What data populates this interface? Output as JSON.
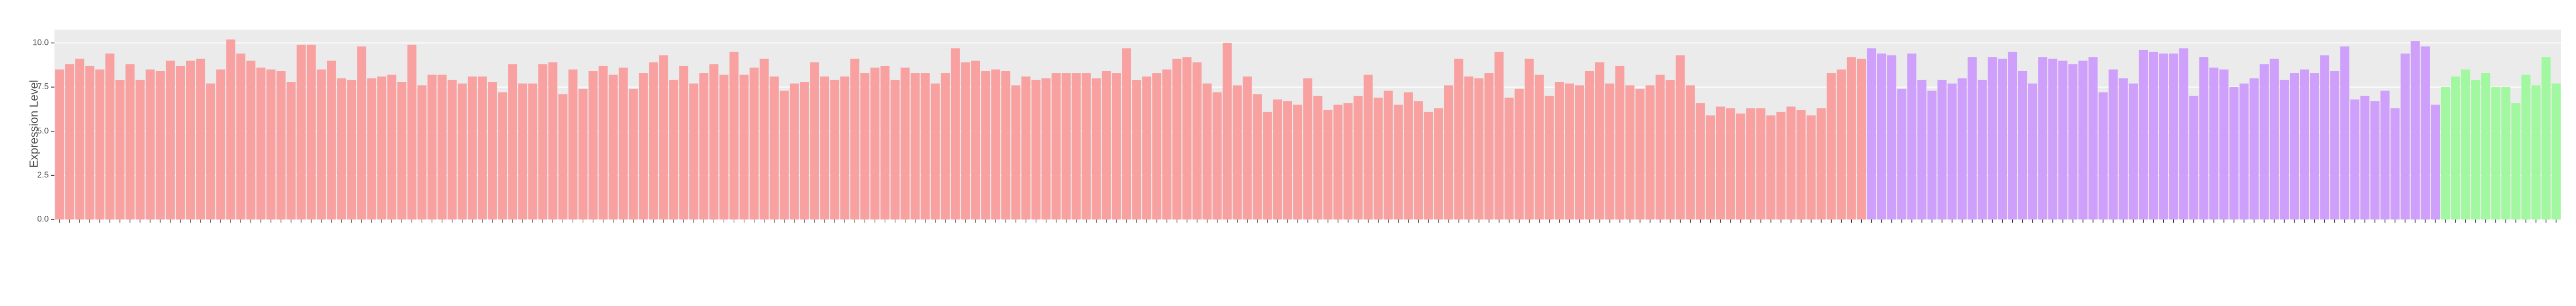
{
  "chart_data": {
    "type": "bar",
    "y_label": "Expression Level",
    "categories": [
      null,
      null,
      null,
      null,
      null,
      null,
      null,
      null,
      null,
      null,
      null,
      null,
      null,
      null,
      null,
      null,
      null,
      null,
      null,
      null,
      null,
      null,
      null,
      null,
      null,
      null,
      null,
      null,
      null,
      null,
      null,
      null,
      null,
      null,
      null,
      null,
      null,
      null,
      null,
      null,
      null,
      null,
      null,
      null,
      null,
      null,
      null,
      null,
      null,
      null,
      null,
      null,
      null,
      null,
      null,
      null,
      null,
      null,
      null,
      null,
      null,
      null,
      null,
      null,
      null,
      null,
      null,
      null,
      null,
      null,
      null,
      null,
      null,
      null,
      null,
      null,
      null,
      null,
      null,
      null,
      null,
      null,
      null,
      null,
      null,
      null,
      null,
      null,
      null,
      null,
      null,
      null,
      null,
      null,
      null,
      null,
      null,
      null,
      null,
      null,
      null,
      null,
      null,
      null,
      null,
      null,
      null,
      null,
      null,
      null,
      null,
      null,
      null,
      null,
      null,
      null,
      null,
      null,
      null,
      null,
      null,
      null,
      null,
      null,
      null,
      null,
      null,
      null,
      null,
      null,
      null,
      null,
      null,
      null,
      null,
      null,
      null,
      null,
      null,
      null,
      null,
      null,
      null,
      null,
      null,
      null,
      null,
      null,
      null,
      null,
      null,
      null,
      null,
      null,
      null,
      null,
      null,
      null,
      null,
      null,
      null,
      null,
      null,
      null,
      null,
      null,
      null,
      null,
      null,
      null,
      null,
      null,
      null,
      null,
      null,
      null,
      null,
      null,
      null,
      null,
      null,
      null,
      null,
      null,
      null,
      null,
      null,
      null,
      null,
      null,
      null,
      null,
      null,
      null,
      null,
      null,
      null,
      null,
      null,
      null,
      null,
      null,
      null,
      null,
      null,
      null,
      null,
      null,
      null,
      null,
      null,
      null,
      null,
      null,
      null,
      null,
      null,
      null,
      null,
      null,
      null,
      null,
      null,
      null,
      null,
      null,
      null,
      null,
      null,
      null,
      null,
      null,
      null,
      null,
      null,
      null,
      null,
      null,
      null,
      null,
      null,
      null,
      null,
      null,
      null,
      null,
      null,
      null,
      null
    ],
    "values": [
      8.5,
      8.8,
      9.1,
      8.7,
      8.5,
      9.4,
      7.9,
      8.8,
      7.9,
      8.5,
      8.4,
      9.0,
      8.7,
      9.0,
      9.1,
      7.7,
      8.5,
      10.2,
      9.4,
      9.0,
      8.6,
      8.5,
      8.4,
      7.8,
      9.9,
      9.9,
      8.5,
      9.0,
      8.0,
      7.9,
      9.8,
      8.0,
      8.1,
      8.2,
      7.8,
      9.9,
      7.6,
      8.2,
      8.2,
      7.9,
      7.7,
      8.1,
      8.1,
      7.8,
      7.2,
      8.8,
      7.7,
      7.7,
      8.8,
      8.9,
      7.1,
      8.5,
      7.4,
      8.4,
      8.7,
      8.2,
      8.6,
      7.4,
      8.3,
      8.9,
      9.3,
      7.9,
      8.7,
      7.7,
      8.3,
      8.8,
      8.2,
      9.5,
      8.2,
      8.6,
      9.1,
      8.1,
      7.3,
      7.7,
      7.8,
      8.9,
      8.1,
      7.9,
      8.1,
      9.1,
      8.3,
      8.6,
      8.7,
      7.9,
      8.6,
      8.3,
      8.3,
      7.7,
      8.3,
      9.7,
      8.9,
      9.0,
      8.4,
      8.5,
      8.4,
      7.6,
      8.1,
      7.9,
      8.0,
      8.3,
      8.3,
      8.3,
      8.3,
      8.0,
      8.4,
      8.3,
      9.7,
      7.9,
      8.1,
      8.3,
      8.5,
      9.1,
      9.2,
      8.9,
      7.7,
      7.2,
      10.0,
      7.6,
      8.1,
      7.1,
      6.1,
      6.8,
      6.7,
      6.5,
      8.0,
      7.0,
      6.2,
      6.5,
      6.6,
      7.0,
      8.2,
      6.9,
      7.3,
      6.5,
      7.2,
      6.7,
      6.1,
      6.3,
      7.6,
      9.1,
      8.1,
      8.0,
      8.3,
      9.5,
      6.9,
      7.4,
      9.1,
      8.2,
      7.0,
      7.8,
      7.7,
      7.6,
      8.4,
      8.9,
      7.7,
      8.7,
      7.6,
      7.4,
      7.6,
      8.2,
      7.9,
      9.3,
      7.6,
      6.6,
      5.9,
      6.4,
      6.3,
      6.0,
      6.3,
      6.3,
      5.9,
      6.1,
      6.4,
      6.2,
      5.9,
      6.3,
      8.3,
      8.5,
      9.2,
      9.1,
      9.7,
      9.4,
      9.3,
      7.4,
      9.4,
      7.9,
      7.3,
      7.9,
      7.7,
      8.0,
      9.2,
      7.9,
      9.2,
      9.1,
      9.5,
      8.4,
      7.7,
      9.2,
      9.1,
      9.0,
      8.8,
      9.0,
      9.2,
      7.2,
      8.5,
      8.0,
      7.7,
      9.6,
      9.5,
      9.4,
      9.4,
      9.7,
      7.0,
      9.2,
      8.6,
      8.5,
      7.5,
      7.7,
      8.0,
      8.8,
      9.1,
      7.9,
      8.3,
      8.5,
      8.3,
      9.3,
      8.4,
      9.8,
      6.8,
      7.0,
      6.7,
      7.3,
      6.3,
      9.4,
      10.1,
      9.8,
      6.5,
      7.5,
      8.1,
      8.5,
      7.9,
      8.3,
      7.5,
      7.5,
      6.6,
      8.2,
      7.6,
      9.2,
      7.7
    ],
    "colors": [
      "#f8a1a0",
      "#f8a1a0",
      "#f8a1a0",
      "#f8a1a0",
      "#f8a1a0",
      "#f8a1a0",
      "#f8a1a0",
      "#f8a1a0",
      "#f8a1a0",
      "#f8a1a0",
      "#f8a1a0",
      "#f8a1a0",
      "#f8a1a0",
      "#f8a1a0",
      "#f8a1a0",
      "#f8a1a0",
      "#f8a1a0",
      "#f8a1a0",
      "#f8a1a0",
      "#f8a1a0",
      "#f8a1a0",
      "#f8a1a0",
      "#f8a1a0",
      "#f8a1a0",
      "#f8a1a0",
      "#f8a1a0",
      "#f8a1a0",
      "#f8a1a0",
      "#f8a1a0",
      "#f8a1a0",
      "#f8a1a0",
      "#f8a1a0",
      "#f8a1a0",
      "#f8a1a0",
      "#f8a1a0",
      "#f8a1a0",
      "#f8a1a0",
      "#f8a1a0",
      "#f8a1a0",
      "#f8a1a0",
      "#f8a1a0",
      "#f8a1a0",
      "#f8a1a0",
      "#f8a1a0",
      "#f8a1a0",
      "#f8a1a0",
      "#f8a1a0",
      "#f8a1a0",
      "#f8a1a0",
      "#f8a1a0",
      "#f8a1a0",
      "#f8a1a0",
      "#f8a1a0",
      "#f8a1a0",
      "#f8a1a0",
      "#f8a1a0",
      "#f8a1a0",
      "#f8a1a0",
      "#f8a1a0",
      "#f8a1a0",
      "#f8a1a0",
      "#f8a1a0",
      "#f8a1a0",
      "#f8a1a0",
      "#f8a1a0",
      "#f8a1a0",
      "#f8a1a0",
      "#f8a1a0",
      "#f8a1a0",
      "#f8a1a0",
      "#f8a1a0",
      "#f8a1a0",
      "#f8a1a0",
      "#f8a1a0",
      "#f8a1a0",
      "#f8a1a0",
      "#f8a1a0",
      "#f8a1a0",
      "#f8a1a0",
      "#f8a1a0",
      "#f8a1a0",
      "#f8a1a0",
      "#f8a1a0",
      "#f8a1a0",
      "#f8a1a0",
      "#f8a1a0",
      "#f8a1a0",
      "#f8a1a0",
      "#f8a1a0",
      "#f8a1a0",
      "#f8a1a0",
      "#f8a1a0",
      "#f8a1a0",
      "#f8a1a0",
      "#f8a1a0",
      "#f8a1a0",
      "#f8a1a0",
      "#f8a1a0",
      "#f8a1a0",
      "#f8a1a0",
      "#f8a1a0",
      "#f8a1a0",
      "#f8a1a0",
      "#f8a1a0",
      "#f8a1a0",
      "#f8a1a0",
      "#f8a1a0",
      "#f8a1a0",
      "#f8a1a0",
      "#f8a1a0",
      "#f8a1a0",
      "#f8a1a0",
      "#f8a1a0",
      "#f8a1a0",
      "#f8a1a0",
      "#f8a1a0",
      "#f8a1a0",
      "#f8a1a0",
      "#f8a1a0",
      "#f8a1a0",
      "#f8a1a0",
      "#f8a1a0",
      "#f8a1a0",
      "#f8a1a0",
      "#f8a1a0",
      "#f8a1a0",
      "#f8a1a0",
      "#f8a1a0",
      "#f8a1a0",
      "#f8a1a0",
      "#f8a1a0",
      "#f8a1a0",
      "#f8a1a0",
      "#f8a1a0",
      "#f8a1a0",
      "#f8a1a0",
      "#f8a1a0",
      "#f8a1a0",
      "#f8a1a0",
      "#f8a1a0",
      "#f8a1a0",
      "#f8a1a0",
      "#f8a1a0",
      "#f8a1a0",
      "#f8a1a0",
      "#f8a1a0",
      "#f8a1a0",
      "#f8a1a0",
      "#f8a1a0",
      "#f8a1a0",
      "#f8a1a0",
      "#f8a1a0",
      "#f8a1a0",
      "#f8a1a0",
      "#f8a1a0",
      "#f8a1a0",
      "#f8a1a0",
      "#f8a1a0",
      "#f8a1a0",
      "#f8a1a0",
      "#f8a1a0",
      "#f8a1a0",
      "#f8a1a0",
      "#f8a1a0",
      "#f8a1a0",
      "#f8a1a0",
      "#f8a1a0",
      "#f8a1a0",
      "#f8a1a0",
      "#f8a1a0",
      "#f8a1a0",
      "#f8a1a0",
      "#f8a1a0",
      "#f8a1a0",
      "#f8a1a0",
      "#f8a1a0",
      "#f8a1a0",
      "#f8a1a0",
      "#f8a1a0",
      "#f8a1a0",
      "#cf9ffc",
      "#cf9ffc",
      "#cf9ffc",
      "#cf9ffc",
      "#cf9ffc",
      "#cf9ffc",
      "#cf9ffc",
      "#cf9ffc",
      "#cf9ffc",
      "#cf9ffc",
      "#cf9ffc",
      "#cf9ffc",
      "#cf9ffc",
      "#cf9ffc",
      "#cf9ffc",
      "#cf9ffc",
      "#cf9ffc",
      "#cf9ffc",
      "#cf9ffc",
      "#cf9ffc",
      "#cf9ffc",
      "#cf9ffc",
      "#cf9ffc",
      "#cf9ffc",
      "#cf9ffc",
      "#cf9ffc",
      "#cf9ffc",
      "#cf9ffc",
      "#cf9ffc",
      "#cf9ffc",
      "#cf9ffc",
      "#cf9ffc",
      "#cf9ffc",
      "#cf9ffc",
      "#cf9ffc",
      "#cf9ffc",
      "#cf9ffc",
      "#cf9ffc",
      "#cf9ffc",
      "#cf9ffc",
      "#cf9ffc",
      "#cf9ffc",
      "#cf9ffc",
      "#cf9ffc",
      "#cf9ffc",
      "#cf9ffc",
      "#cf9ffc",
      "#cf9ffc",
      "#cf9ffc",
      "#cf9ffc",
      "#cf9ffc",
      "#cf9ffc",
      "#cf9ffc",
      "#cf9ffc",
      "#cf9ffc",
      "#cf9ffc",
      "#cf9ffc",
      "#a1f8a0",
      "#a1f8a0",
      "#a1f8a0",
      "#a1f8a0",
      "#a1f8a0",
      "#a1f8a0",
      "#a1f8a0",
      "#a1f8a0",
      "#a1f8a0",
      "#a1f8a0",
      "#a1f8a0",
      "#a1f8a0",
      "#a1f8a0",
      "#a1f8a0",
      "#a1f8a0",
      "#a1f8a0"
    ],
    "ylim": [
      0,
      10.75
    ],
    "yticks": [
      {
        "value": 0,
        "label": "0.0"
      },
      2.5,
      {
        "value": 5,
        "label": "5.0"
      },
      7.5,
      {
        "value": 10,
        "label": "10.0"
      }
    ],
    "grid": true
  }
}
